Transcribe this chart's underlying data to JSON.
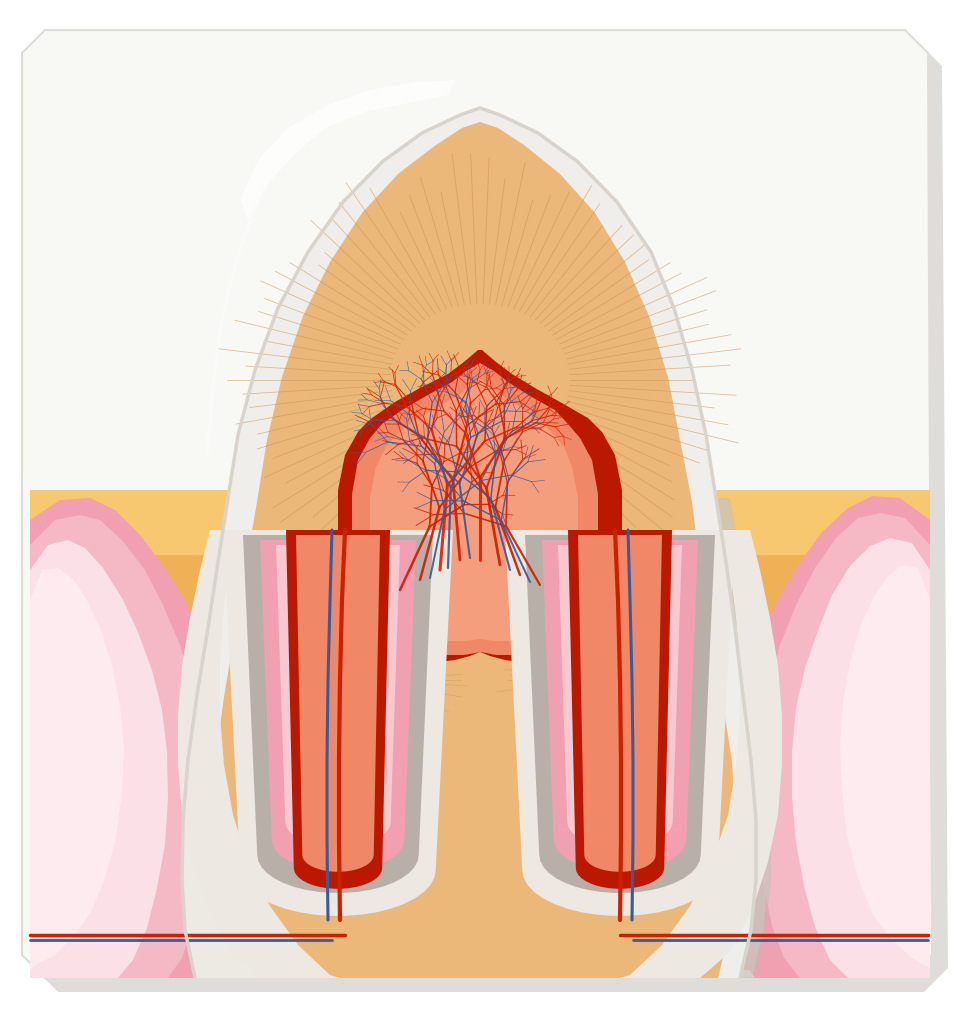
{
  "bg": "#ffffff",
  "shadow_gray": "#b8b8b0",
  "sticker_bg": "#f8f8f5",
  "bone_orange": "#f0b055",
  "bone_light": "#f5c870",
  "gum_dark_pink": "#f0a0b0",
  "gum_med_pink": "#f5b8c5",
  "gum_light_pink": "#fad0d8",
  "gum_pale": "#fce8ec",
  "enamel_white": "#f0eeea",
  "enamel_cream": "#ede8e0",
  "enamel_shadow": "#ccc8c0",
  "dentin_orange": "#ebb87a",
  "dentin_line": "#d4a060",
  "pulp_red_border": "#bb1800",
  "pulp_fill": "#f08868",
  "pulp_light": "#f5a080",
  "root_dentin_white": "#ede8e2",
  "root_cementum_gray": "#b8b0a8",
  "root_canal_pink": "#f0a0b0",
  "root_canal_light": "#f8c8d0",
  "root_canal_bone": "#f0b055",
  "nerve_red": "#cc2000",
  "nerve_blue": "#3a5a9a",
  "fig_w": 9.6,
  "fig_h": 10.24
}
